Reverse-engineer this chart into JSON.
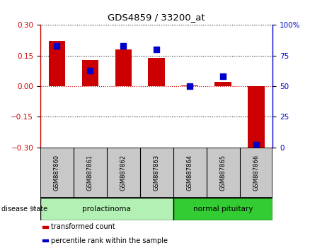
{
  "title": "GDS4859 / 33200_at",
  "samples": [
    "GSM887860",
    "GSM887861",
    "GSM887862",
    "GSM887863",
    "GSM887864",
    "GSM887865",
    "GSM887866"
  ],
  "transformed_count": [
    0.222,
    0.13,
    0.18,
    0.14,
    0.003,
    0.02,
    -0.31
  ],
  "percentile_rank": [
    83,
    63,
    83,
    80,
    50,
    58,
    2
  ],
  "left_ylim": [
    -0.3,
    0.3
  ],
  "left_yticks": [
    -0.3,
    -0.15,
    0,
    0.15,
    0.3
  ],
  "right_ylim": [
    0,
    100
  ],
  "right_yticks": [
    0,
    25,
    50,
    75,
    100
  ],
  "right_yticklabels": [
    "0",
    "25",
    "50",
    "75",
    "100%"
  ],
  "bar_color": "#cc0000",
  "scatter_color": "#0000cc",
  "zero_line_color": "#cc0000",
  "groups": [
    {
      "label": "prolactinoma",
      "indices": [
        0,
        1,
        2,
        3
      ],
      "color": "#b3f0b3"
    },
    {
      "label": "normal pituitary",
      "indices": [
        4,
        5,
        6
      ],
      "color": "#33cc33"
    }
  ],
  "disease_state_label": "disease state",
  "legend_items": [
    {
      "label": "transformed count",
      "color": "#cc0000"
    },
    {
      "label": "percentile rank within the sample",
      "color": "#0000cc"
    }
  ],
  "bg_color": "#ffffff",
  "sample_box_color": "#c8c8c8",
  "bar_width": 0.5,
  "scatter_size": 30
}
